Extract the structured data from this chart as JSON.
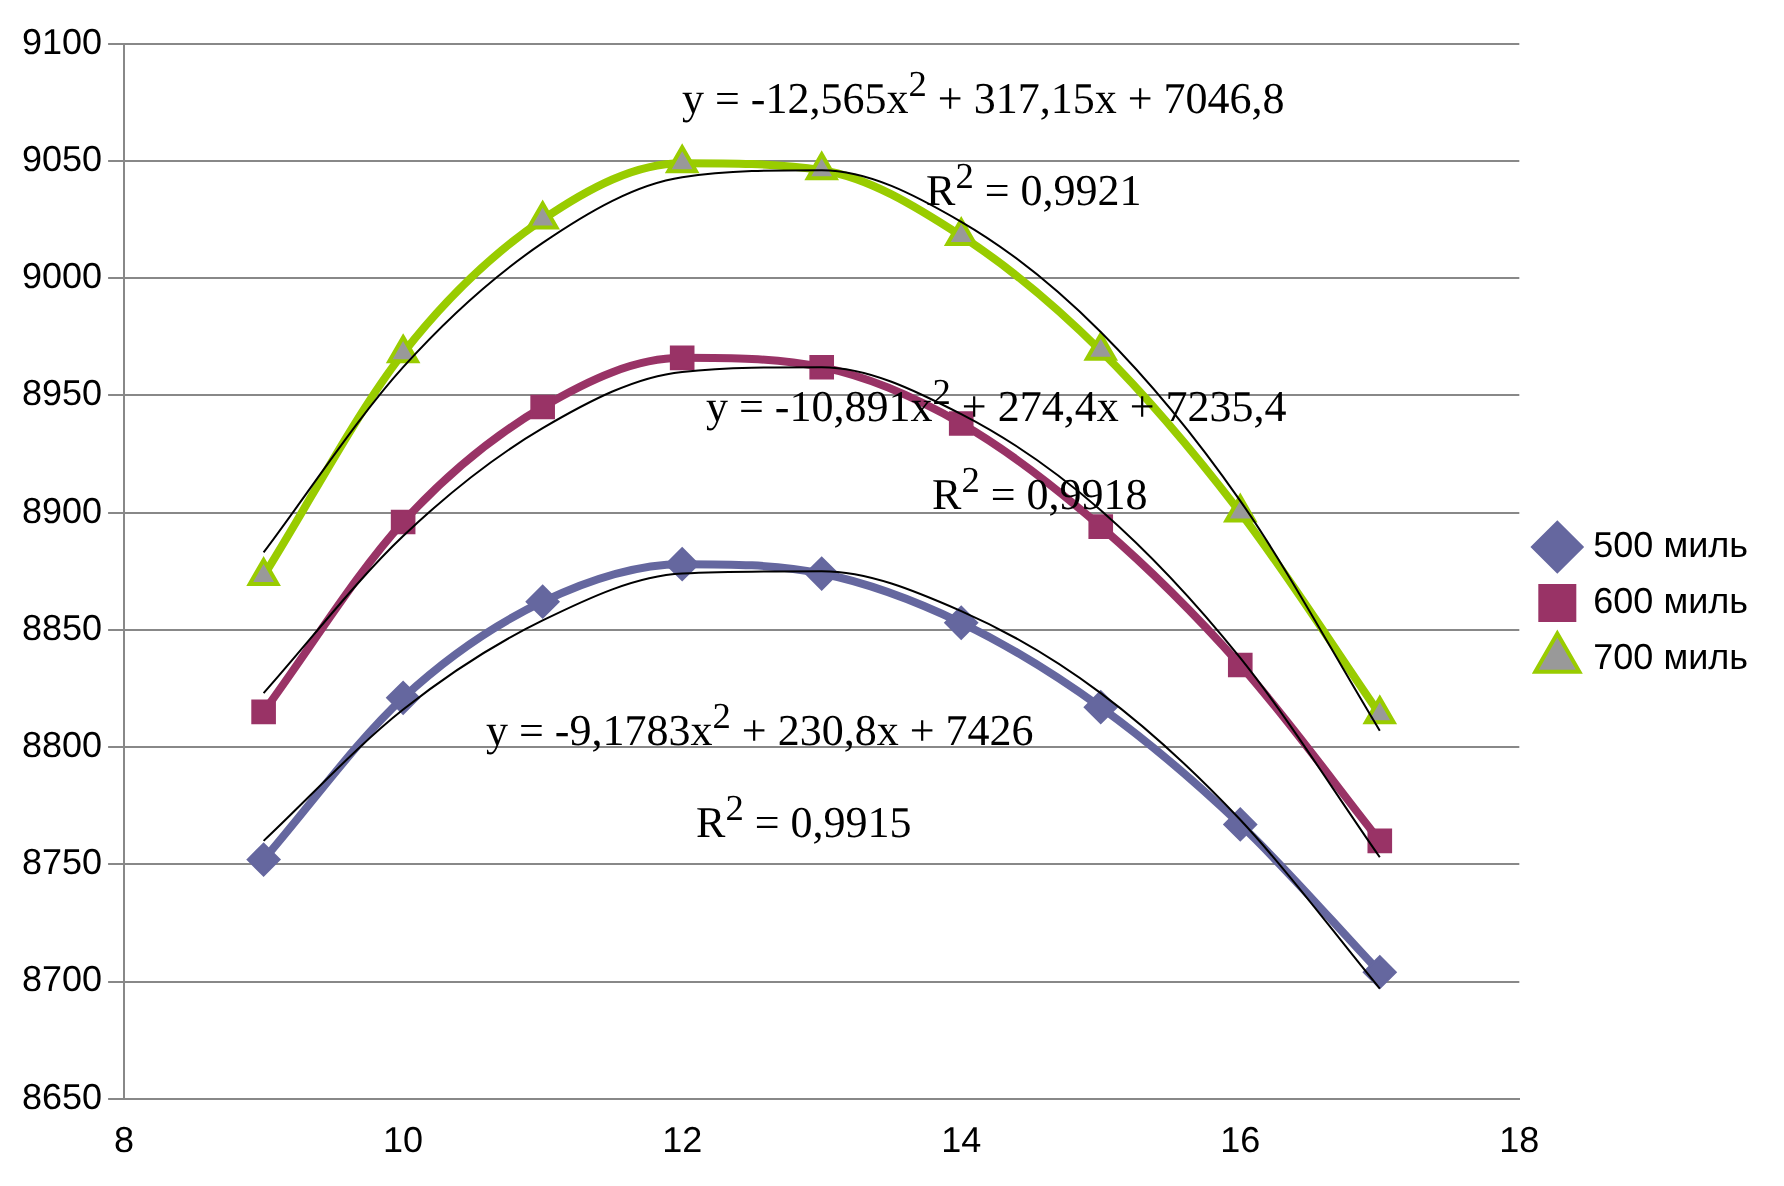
{
  "chart_data": {
    "type": "line",
    "x": [
      9,
      10,
      11,
      12,
      13,
      14,
      15,
      16,
      17
    ],
    "xlim": [
      8,
      18
    ],
    "xticks": [
      8,
      10,
      12,
      14,
      16,
      18
    ],
    "ylim": [
      8650,
      9100
    ],
    "yticks": [
      8650,
      8700,
      8750,
      8800,
      8850,
      8900,
      8950,
      9000,
      9050,
      9100
    ],
    "grid": "y",
    "legend": "right",
    "series": [
      {
        "name": "500 миль",
        "color": "#65679f",
        "marker": "diamond",
        "values": [
          8752,
          8821,
          8862,
          8878,
          8874,
          8853,
          8817,
          8767,
          8704
        ]
      },
      {
        "name": "600 миль",
        "color": "#993366",
        "marker": "square",
        "values": [
          8815,
          8896,
          8945,
          8966,
          8962,
          8938,
          8894,
          8835,
          8760
        ]
      },
      {
        "name": "700 миль",
        "color": "#99cc00",
        "marker": "triangle",
        "values": [
          8873,
          8968,
          9025,
          9049,
          9046,
          9018,
          8969,
          8900,
          8814
        ]
      },
      {
        "color": "#000000",
        "marker": "none",
        "values": [
          8760,
          8816,
          8854,
          8874,
          8875,
          8858,
          8823,
          8769,
          8697
        ]
      },
      {
        "color": "#000000",
        "marker": "none",
        "values": [
          8823,
          8890,
          8936,
          8960,
          8962,
          8942,
          8901,
          8838,
          8753
        ]
      },
      {
        "color": "#000000",
        "marker": "none",
        "values": [
          8883,
          8962,
          9015,
          9043,
          9046,
          9024,
          8977,
          8905,
          8807
        ]
      }
    ],
    "annotations": [
      "y = -12,565x$^{2}$ + 317,15x + 7046,8",
      "R$^{2}$ = 0,9921",
      "y = -10,891x$^{2}$ + 274,4x + 7235,4",
      "R$^{2}$ = 0,9918",
      "y = -9,1783x$^{2}$ + 230,8x + 7426",
      "R$^{2}$ = 0,9915"
    ]
  }
}
